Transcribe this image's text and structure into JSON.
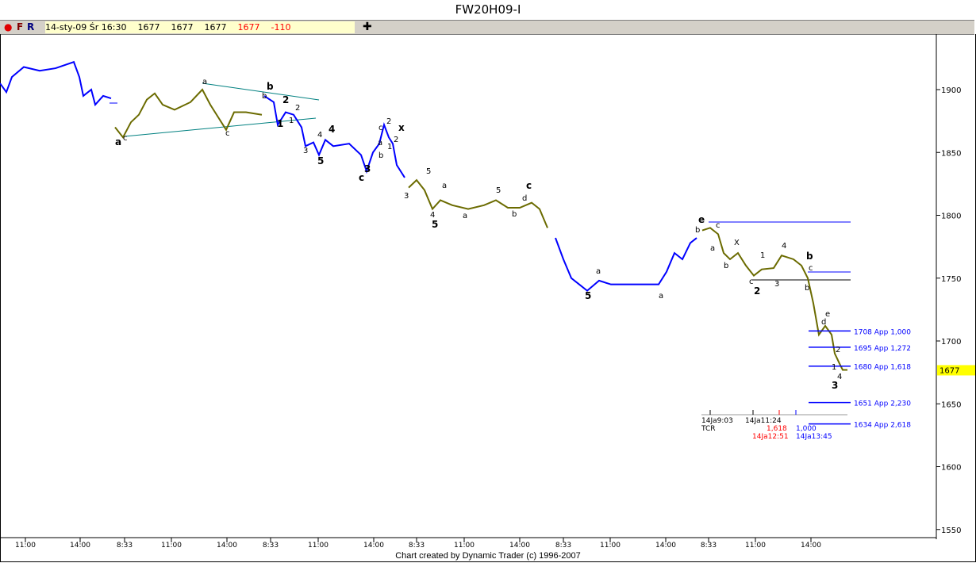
{
  "window": {
    "title": "FW20H09-I"
  },
  "toolbar": {
    "record_icon": "red-dot-icon",
    "f_label": "F",
    "r_label": "R",
    "info": {
      "date": "14-sty-09 Śr 16:30",
      "open": "1677",
      "high": "1677",
      "low": "1677",
      "close": "1677",
      "change": "-110"
    },
    "crosshair_icon": "plus-icon"
  },
  "price_axis": {
    "ticks": [
      "1900",
      "1850",
      "1800",
      "1750",
      "1700",
      "1650",
      "1600",
      "1550"
    ],
    "current": "1677",
    "current_color": "#ffff00"
  },
  "time_axis": {
    "ticks": [
      "11:00",
      "14:00",
      "8:33",
      "11:00",
      "14:00",
      "8:33",
      "11:00",
      "14:00",
      "8:33",
      "11:00",
      "14:00",
      "8:33",
      "11:00",
      "14:00",
      "8:33",
      "11:00",
      "14:00"
    ]
  },
  "colors": {
    "wave_blue": "#0000ff",
    "wave_olive": "#6b6b00",
    "trendline": "#008080",
    "projection": "#0000ff"
  },
  "projections": [
    {
      "label": "1708 App 1,000"
    },
    {
      "label": "1695 App 1,272"
    },
    {
      "label": "1680 App 1,618"
    },
    {
      "label": "1651 App 2,230"
    },
    {
      "label": "1634 App 2,618"
    }
  ],
  "time_cycle": {
    "label1": "14Ja9:03",
    "label2": "14Ja11:24",
    "label3": "TCR",
    "ratio_red": "1,618",
    "ratio_blue": "1,000",
    "date_red": "14Ja12:51",
    "date_blue": "14Ja13:45"
  },
  "wave_labels": [
    "a",
    "c",
    "a",
    "b",
    "b",
    "c",
    "1",
    "2",
    "1",
    "2",
    "3",
    "4",
    "4",
    "5",
    "3",
    "c",
    "5",
    "a",
    "b",
    "1",
    "c",
    "2",
    "x",
    "2",
    "3",
    "4",
    "5",
    "a",
    "a",
    "5",
    "b",
    "c",
    "d",
    "e",
    "b",
    "c",
    "a",
    "b",
    "X",
    "c",
    "2",
    "1",
    "3",
    "4",
    "a",
    "5",
    "a",
    "b",
    "c",
    "b",
    "e",
    "d",
    "2",
    "1",
    "4",
    "3",
    "5",
    "c"
  ],
  "footer": "Chart created by Dynamic Trader  (c) 1996-2007"
}
